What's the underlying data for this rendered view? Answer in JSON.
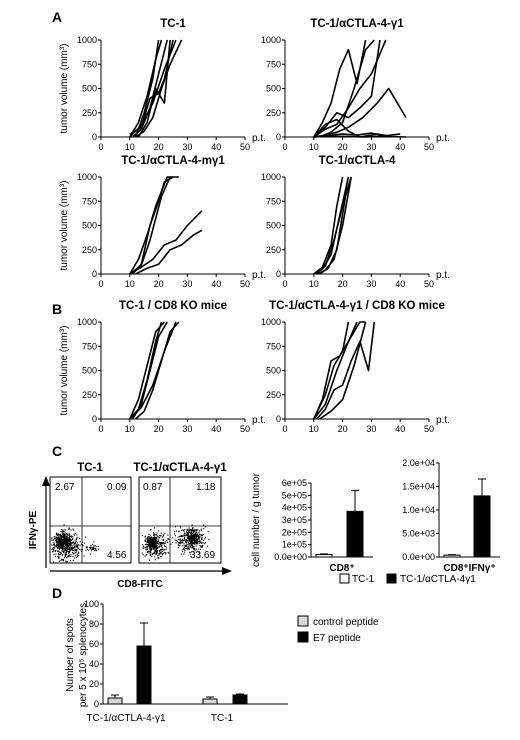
{
  "panel_letters": [
    "A",
    "B",
    "C",
    "D"
  ],
  "growth_plots": {
    "ylabel": "tumor volume (mm³)",
    "xlabel": "p.t.",
    "xticks": [
      0,
      10,
      20,
      30,
      40,
      50
    ],
    "yticks": [
      0,
      250,
      500,
      750,
      1000
    ],
    "xlim": [
      0,
      50
    ],
    "ylim": [
      0,
      1000
    ]
  },
  "chart_data": [
    {
      "type": "line",
      "title": "TC-1",
      "xlabel": "p.t.",
      "ylabel": "tumor volume (mm³)",
      "xlim": [
        0,
        50
      ],
      "ylim": [
        0,
        1000
      ],
      "series": [
        {
          "x": [
            10,
            14,
            18,
            22,
            26
          ],
          "y": [
            0,
            120,
            350,
            700,
            1000
          ]
        },
        {
          "x": [
            10,
            13,
            16,
            19,
            21
          ],
          "y": [
            0,
            150,
            420,
            800,
            1000
          ]
        },
        {
          "x": [
            11,
            14,
            17,
            20,
            23
          ],
          "y": [
            0,
            80,
            300,
            650,
            1000
          ]
        },
        {
          "x": [
            12,
            15,
            18,
            21,
            24,
            28
          ],
          "y": [
            0,
            60,
            200,
            500,
            750,
            1000
          ]
        },
        {
          "x": [
            10,
            14,
            17,
            20,
            22,
            25
          ],
          "y": [
            30,
            100,
            400,
            450,
            600,
            1000
          ]
        },
        {
          "x": [
            13,
            16,
            19,
            22,
            24
          ],
          "y": [
            0,
            150,
            500,
            350,
            1000
          ]
        },
        {
          "x": [
            12,
            15,
            18,
            20
          ],
          "y": [
            0,
            250,
            600,
            1000
          ]
        }
      ]
    },
    {
      "type": "line",
      "title": "TC-1/αCTLA-4-γ1",
      "xlabel": "p.t.",
      "ylabel": "tumor volume (mm³)",
      "xlim": [
        0,
        50
      ],
      "ylim": [
        0,
        1000
      ],
      "series": [
        {
          "x": [
            10,
            14,
            18,
            22,
            26,
            30,
            35
          ],
          "y": [
            0,
            80,
            130,
            300,
            500,
            650,
            1000
          ]
        },
        {
          "x": [
            10,
            13,
            16,
            19,
            22,
            25,
            28
          ],
          "y": [
            0,
            150,
            350,
            700,
            900,
            550,
            1000
          ]
        },
        {
          "x": [
            12,
            16,
            20,
            24,
            28,
            31
          ],
          "y": [
            0,
            50,
            150,
            500,
            900,
            1000
          ]
        },
        {
          "x": [
            10,
            14,
            18,
            22,
            27,
            32,
            36,
            42
          ],
          "y": [
            0,
            20,
            50,
            100,
            200,
            350,
            500,
            200
          ]
        },
        {
          "x": [
            10,
            14,
            18,
            22,
            26,
            30,
            33
          ],
          "y": [
            0,
            100,
            250,
            200,
            300,
            420,
            1000
          ]
        },
        {
          "x": [
            10,
            14,
            18,
            22,
            26,
            32,
            36
          ],
          "y": [
            0,
            130,
            180,
            60,
            0,
            30,
            10
          ]
        },
        {
          "x": [
            10,
            15,
            20,
            25,
            30,
            36,
            42
          ],
          "y": [
            0,
            20,
            30,
            20,
            40,
            5,
            0
          ]
        },
        {
          "x": [
            10,
            16,
            22,
            28,
            34,
            40
          ],
          "y": [
            0,
            10,
            5,
            0,
            10,
            30
          ]
        }
      ]
    },
    {
      "type": "line",
      "title": "TC-1/αCTLA-4-mγ1",
      "xlabel": "p.t.",
      "ylabel": "tumor volume (mm³)",
      "xlim": [
        0,
        50
      ],
      "ylim": [
        0,
        1000
      ],
      "series": [
        {
          "x": [
            10,
            13,
            16,
            19,
            23,
            27
          ],
          "y": [
            0,
            150,
            400,
            700,
            1000,
            1000
          ]
        },
        {
          "x": [
            11,
            14,
            17,
            20,
            22,
            25
          ],
          "y": [
            0,
            100,
            500,
            750,
            950,
            1000
          ]
        },
        {
          "x": [
            10,
            14,
            18,
            22,
            26,
            30,
            35
          ],
          "y": [
            0,
            70,
            150,
            300,
            350,
            500,
            650
          ]
        },
        {
          "x": [
            12,
            16,
            20,
            24,
            28,
            32,
            35
          ],
          "y": [
            0,
            60,
            100,
            250,
            300,
            400,
            450
          ]
        },
        {
          "x": [
            10,
            14,
            17,
            21,
            24
          ],
          "y": [
            0,
            90,
            350,
            800,
            1000
          ]
        }
      ]
    },
    {
      "type": "line",
      "title": "TC-1/αCTLA-4",
      "xlabel": "p.t.",
      "ylabel": "tumor volume (mm³)",
      "xlim": [
        0,
        50
      ],
      "ylim": [
        0,
        1000
      ],
      "series": [
        {
          "x": [
            10,
            13,
            16,
            18,
            20
          ],
          "y": [
            0,
            70,
            300,
            700,
            1000
          ]
        },
        {
          "x": [
            10,
            13,
            16,
            19,
            22
          ],
          "y": [
            0,
            50,
            200,
            600,
            1000
          ]
        },
        {
          "x": [
            11,
            14,
            17,
            20,
            23
          ],
          "y": [
            0,
            40,
            150,
            500,
            1000
          ]
        },
        {
          "x": [
            12,
            15,
            18,
            21,
            23
          ],
          "y": [
            0,
            60,
            250,
            800,
            1000
          ]
        },
        {
          "x": [
            10,
            14,
            17,
            20,
            22
          ],
          "y": [
            0,
            80,
            350,
            700,
            1000
          ]
        }
      ]
    },
    {
      "type": "line",
      "title": "TC-1 / CD8 KO mice",
      "xlabel": "p.t.",
      "ylabel": "tumor volume (mm³)",
      "xlim": [
        0,
        50
      ],
      "ylim": [
        0,
        1000
      ],
      "series": [
        {
          "x": [
            10,
            13,
            16,
            19,
            21
          ],
          "y": [
            0,
            100,
            400,
            800,
            1000
          ]
        },
        {
          "x": [
            11,
            14,
            17,
            20,
            23
          ],
          "y": [
            0,
            150,
            500,
            850,
            1000
          ]
        },
        {
          "x": [
            10,
            14,
            18,
            22,
            26
          ],
          "y": [
            0,
            120,
            350,
            700,
            1000
          ]
        },
        {
          "x": [
            12,
            15,
            18,
            21,
            24,
            27
          ],
          "y": [
            0,
            80,
            300,
            600,
            900,
            1000
          ]
        },
        {
          "x": [
            10,
            13,
            16,
            19,
            22
          ],
          "y": [
            0,
            200,
            550,
            900,
            1000
          ]
        }
      ]
    },
    {
      "type": "line",
      "title": "TC-1/αCTLA-4-γ1 / CD8 KO mice",
      "xlabel": "p.t.",
      "ylabel": "tumor volume (mm³)",
      "xlim": [
        0,
        50
      ],
      "ylim": [
        0,
        1000
      ],
      "series": [
        {
          "x": [
            10,
            14,
            18,
            22,
            26,
            28
          ],
          "y": [
            0,
            150,
            500,
            800,
            1000,
            1000
          ]
        },
        {
          "x": [
            10,
            13,
            16,
            19,
            22,
            25
          ],
          "y": [
            0,
            200,
            600,
            650,
            800,
            1000
          ]
        },
        {
          "x": [
            11,
            14,
            17,
            20,
            23,
            26,
            29,
            31
          ],
          "y": [
            0,
            100,
            300,
            350,
            600,
            800,
            500,
            1000
          ]
        },
        {
          "x": [
            12,
            16,
            20,
            24,
            28
          ],
          "y": [
            0,
            80,
            200,
            550,
            1000
          ]
        },
        {
          "x": [
            10,
            14,
            17,
            20,
            22
          ],
          "y": [
            0,
            250,
            550,
            700,
            1000
          ]
        }
      ]
    },
    {
      "type": "bar",
      "title": "CD8⁺",
      "ylabel": "cell number / g tumor",
      "ylim": [
        0,
        600000
      ],
      "yticks": [
        "0.0e+00",
        "1e+05",
        "2e+05",
        "3e+05",
        "4e+05",
        "5e+05",
        "6e+05"
      ],
      "categories": [
        "TC-1",
        "TC-1/αCTLA-4γ1"
      ],
      "values": [
        20000,
        370000
      ],
      "errors": [
        5000,
        170000
      ]
    },
    {
      "type": "bar",
      "title": "CD8⁺IFNγ⁺",
      "ylim": [
        0,
        20000
      ],
      "yticks": [
        "0.0e+00",
        "5.0e+03",
        "1.0e+04",
        "1.5e+04",
        "2.0e+04"
      ],
      "categories": [
        "TC-1",
        "TC-1/αCTLA-4γ1"
      ],
      "values": [
        400,
        13000
      ],
      "errors": [
        100,
        3600
      ]
    },
    {
      "type": "bar",
      "ylabel": "Number of spots per 5 x 10⁵ splenocytes",
      "ylim": [
        0,
        100
      ],
      "yticks": [
        0,
        20,
        40,
        60,
        80,
        100
      ],
      "categories": [
        "TC-1/αCTLA-4-γ1",
        "TC-1"
      ],
      "series": [
        {
          "name": "control peptide",
          "values": [
            6,
            5
          ],
          "errors": [
            3,
            2
          ],
          "color": "#d8d8d8"
        },
        {
          "name": "E7 peptide",
          "values": [
            58,
            9
          ],
          "errors": [
            23,
            1
          ],
          "color": "#000000"
        }
      ]
    }
  ],
  "flow": {
    "ylabel": "IFNγ-PE",
    "xlabel": "CD8-FITC",
    "plots": [
      {
        "title": "TC-1",
        "quadrants": {
          "ul": "2.67",
          "ur": "0.09",
          "lr": "4.56"
        }
      },
      {
        "title": "TC-1/αCTLA-4-γ1",
        "quadrants": {
          "ul": "0.87",
          "ur": "1.18",
          "lr": "33.69"
        }
      }
    ]
  },
  "bars_c_legend": [
    {
      "label": "TC-1",
      "fill": "#ffffff"
    },
    {
      "label": "TC-1/αCTLA-4γ1",
      "fill": "#000000"
    }
  ]
}
